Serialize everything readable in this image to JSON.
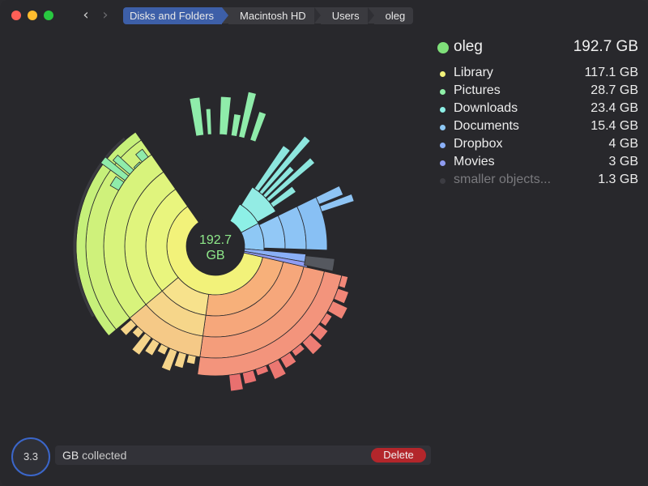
{
  "window": {
    "breadcrumb": [
      "Disks and Folders",
      "Macintosh HD",
      "Users",
      "oleg"
    ]
  },
  "chart_center": {
    "value": "192.7",
    "unit": "GB"
  },
  "legend": {
    "head": {
      "name": "oleg",
      "size": "192.7 GB",
      "color": "#7fe07a"
    },
    "items": [
      {
        "name": "Library",
        "size": "117.1 GB",
        "color": "#f2f27a"
      },
      {
        "name": "Pictures",
        "size": "28.7 GB",
        "color": "#8ff0a8"
      },
      {
        "name": "Downloads",
        "size": "23.4 GB",
        "color": "#8df0e6"
      },
      {
        "name": "Documents",
        "size": "15.4 GB",
        "color": "#8ec8f5"
      },
      {
        "name": "Dropbox",
        "size": "4   GB",
        "color": "#8ab0f7"
      },
      {
        "name": "Movies",
        "size": "3   GB",
        "color": "#8f9cf2"
      },
      {
        "name": "smaller objects...",
        "size": "1.3 GB",
        "color": "#3c3c42"
      }
    ]
  },
  "bottom": {
    "collected_value": "3.3",
    "collected_unit": "GB",
    "collected_label": "collected",
    "delete_label": "Delete"
  },
  "colors": {
    "accent": "#3d5fa8",
    "delete": "#b3262b",
    "background": "#28282c"
  },
  "icons": {
    "back": "chevron-left-icon",
    "forward": "chevron-right-icon"
  }
}
